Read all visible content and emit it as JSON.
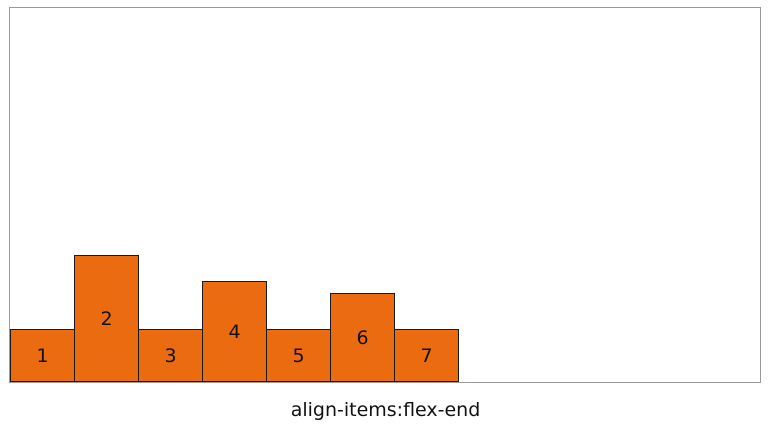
{
  "items": [
    {
      "label": "1",
      "height_ratio": 1.0
    },
    {
      "label": "2",
      "height_ratio": 2.4
    },
    {
      "label": "3",
      "height_ratio": 1.0
    },
    {
      "label": "4",
      "height_ratio": 1.9
    },
    {
      "label": "5",
      "height_ratio": 1.0
    },
    {
      "label": "6",
      "height_ratio": 1.67
    },
    {
      "label": "7",
      "height_ratio": 1.0
    }
  ],
  "caption": "align-items:flex-end",
  "colors": {
    "item_fill": "#eb6c10",
    "item_border": "#1a1a1a",
    "container_border": "#9a9a9a"
  }
}
